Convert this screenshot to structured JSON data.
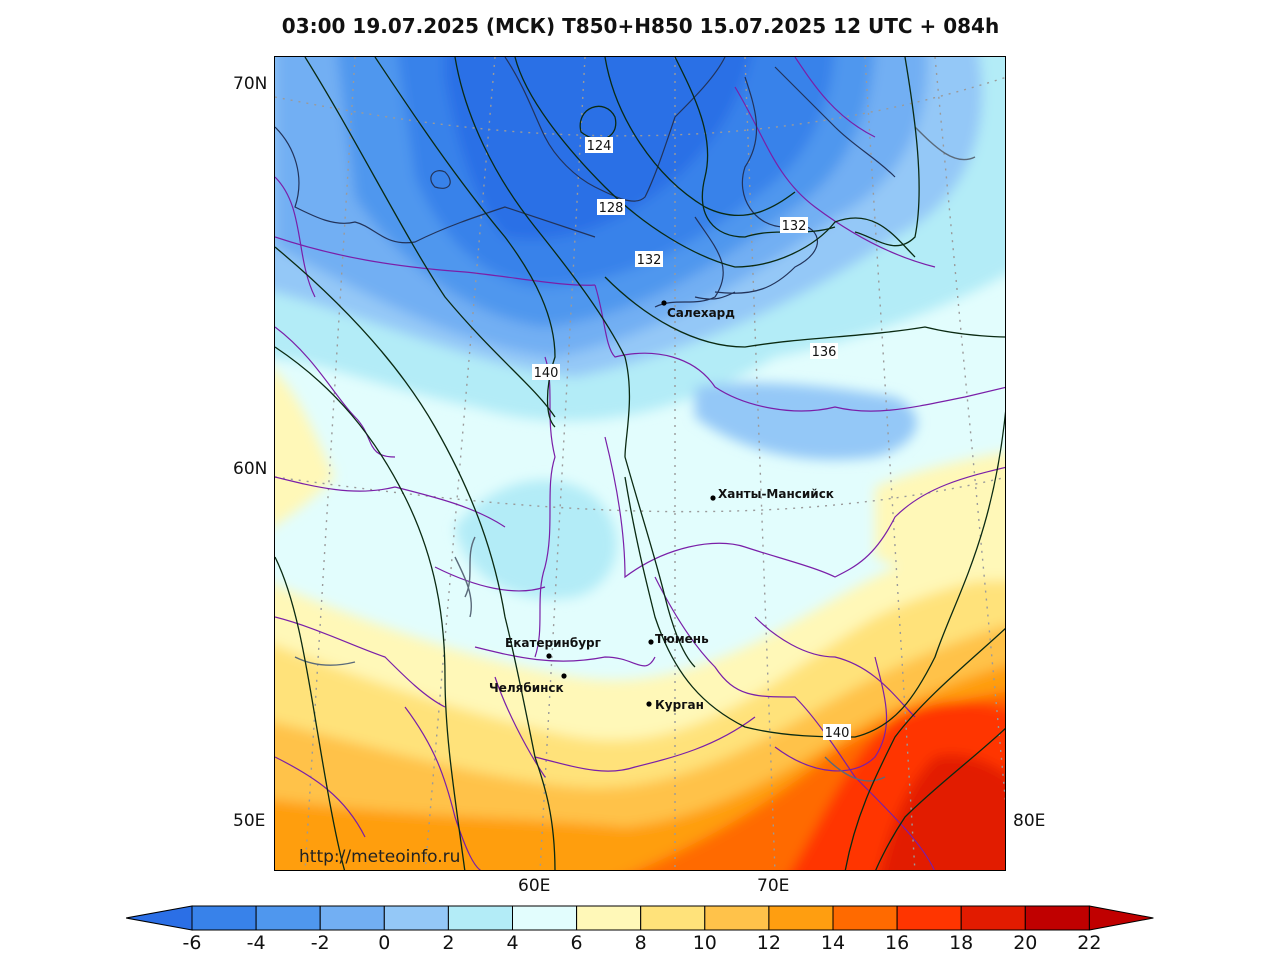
{
  "title": "03:00 19.07.2025 (МСК) T850+H850 15.07.2025 12 UTC + 084h",
  "lat_labels": [
    "70N",
    "60N",
    "50E"
  ],
  "lon_labels": [
    "60E",
    "70E",
    "80E"
  ],
  "cities": [
    {
      "name": "Салехард"
    },
    {
      "name": "Ханты-Мансийск"
    },
    {
      "name": "Екатеринбург"
    },
    {
      "name": "Тюмень"
    },
    {
      "name": "Челябинск"
    },
    {
      "name": "Курган"
    }
  ],
  "contour_labels": [
    "124",
    "128",
    "132",
    "132",
    "136",
    "140",
    "140"
  ],
  "watermark": "http://meteoinfo.ru",
  "colorbar": {
    "ticks": [
      "-6",
      "-4",
      "-2",
      "0",
      "2",
      "4",
      "6",
      "8",
      "10",
      "12",
      "14",
      "16",
      "18",
      "20",
      "22"
    ],
    "colors": [
      "#2b6fe6",
      "#3882ea",
      "#4f97ee",
      "#72aff3",
      "#94c8f7",
      "#b3ecf7",
      "#e2fdfd",
      "#fff8b8",
      "#ffe27a",
      "#ffc24a",
      "#ff9e10",
      "#ff6a00",
      "#ff3500",
      "#e21b00",
      "#c00000"
    ]
  }
}
